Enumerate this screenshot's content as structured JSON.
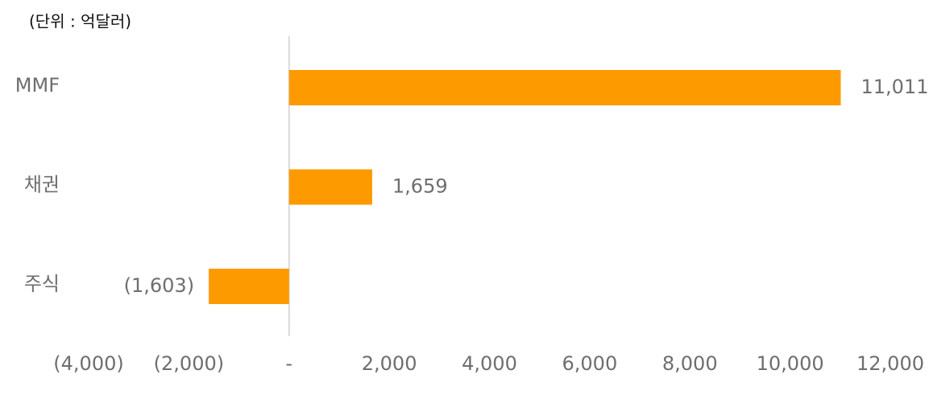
{
  "chart_data": {
    "type": "hbar",
    "subtitle": "(단위 : 억달러)",
    "categories": [
      "MMF",
      "채권",
      "주식"
    ],
    "values": [
      11011,
      1659,
      -1603
    ],
    "value_labels": [
      "11,011",
      "1,659",
      "(1,603)"
    ],
    "color": "#fd9a00",
    "xlim": [
      -4000,
      12000
    ],
    "xticks": [
      {
        "value": -4000,
        "label": "(4,000)"
      },
      {
        "value": -2000,
        "label": "(2,000)"
      },
      {
        "value": 0,
        "label": "-"
      },
      {
        "value": 2000,
        "label": "2,000"
      },
      {
        "value": 4000,
        "label": "4,000"
      },
      {
        "value": 6000,
        "label": "6,000"
      },
      {
        "value": 8000,
        "label": "8,000"
      },
      {
        "value": 10000,
        "label": "10,000"
      },
      {
        "value": 12000,
        "label": "12,000"
      }
    ]
  }
}
